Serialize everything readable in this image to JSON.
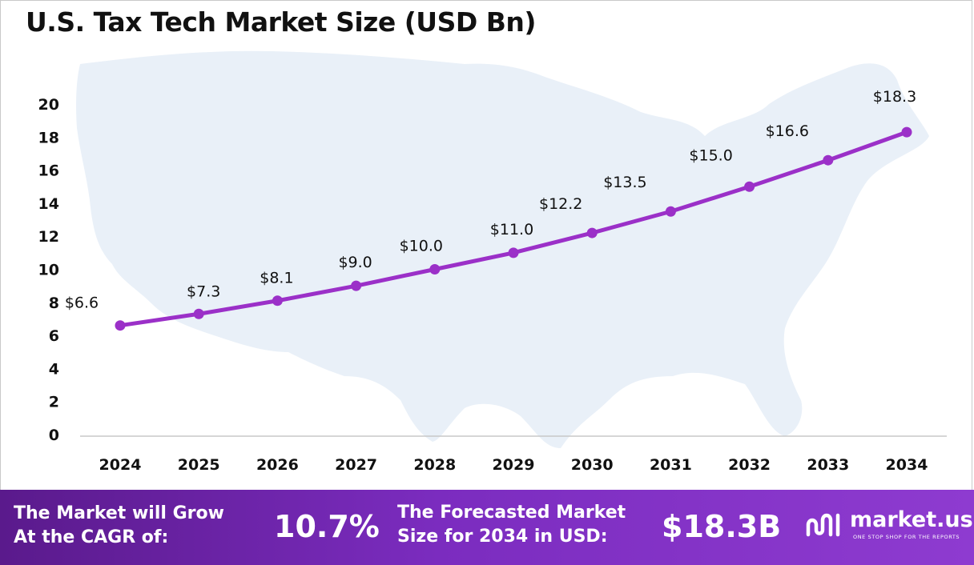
{
  "title": "U.S. Tax Tech Market Size (USD Bn)",
  "chart_data": {
    "type": "line",
    "x": [
      "2024",
      "2025",
      "2026",
      "2027",
      "2028",
      "2029",
      "2030",
      "2031",
      "2032",
      "2033",
      "2034"
    ],
    "series": [
      {
        "values": [
          6.6,
          7.3,
          8.1,
          9.0,
          10.0,
          11.0,
          12.2,
          13.5,
          15.0,
          16.6,
          18.3
        ]
      }
    ],
    "data_labels": [
      "$6.6",
      "$7.3",
      "$8.1",
      "$9.0",
      "$10.0",
      "$11.0",
      "$12.2",
      "$13.5",
      "$15.0",
      "$16.6",
      "$18.3"
    ],
    "yticks": [
      "0",
      "2",
      "4",
      "6",
      "8",
      "10",
      "12",
      "14",
      "16",
      "18",
      "20"
    ],
    "ylim": [
      0,
      20
    ],
    "grid": false,
    "legend": "none",
    "line_color": "#9b30c8",
    "background_map_color": "#e9f0f8"
  },
  "footer": {
    "cagr_line1": "The Market will Grow",
    "cagr_line2": "At the CAGR of:",
    "cagr_value": "10.7%",
    "forecast_line1": "The Forecasted Market",
    "forecast_line2": "Size for 2034 in USD:",
    "forecast_value": "$18.3B",
    "brand_name": "market.us",
    "brand_tagline": "ONE STOP SHOP FOR THE REPORTS"
  }
}
